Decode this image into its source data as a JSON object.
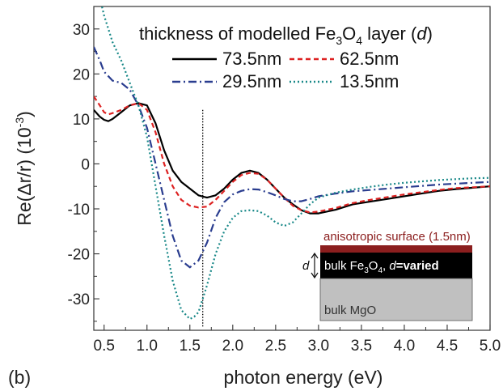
{
  "chart_data": {
    "type": "line",
    "panel_label": "(b)",
    "xlabel": "photon energy (eV)",
    "ylabel_main": "Re(Δr/r) (10",
    "ylabel_exp": "-3",
    "ylabel_close": ")",
    "xlim": [
      0.38,
      5.0
    ],
    "ylim": [
      -37,
      35
    ],
    "xticks": [
      0.5,
      1.0,
      1.5,
      2.0,
      2.5,
      3.0,
      3.5,
      4.0,
      4.5,
      5.0
    ],
    "xtick_labels": [
      "0.5",
      "1.0",
      "1.5",
      "2.0",
      "2.5",
      "3.0",
      "3.5",
      "4.0",
      "4.5",
      "5.0"
    ],
    "yticks": [
      30,
      20,
      10,
      0,
      -10,
      -20,
      -30
    ],
    "ytick_labels": [
      "30",
      "20",
      "10",
      "0",
      "-10",
      "-20",
      "-30"
    ],
    "legend_title": {
      "prefix": "thickness of modelled Fe",
      "sub": "3",
      "mid": "O",
      "sub2": "4",
      "suffix": " layer (",
      "italic": "d",
      "close": ")"
    },
    "legend_position": "top-right",
    "reference_line_x": 1.65,
    "series": [
      {
        "name": "73.5nm",
        "color": "#000000",
        "dash": "solid",
        "x": [
          0.38,
          0.45,
          0.5,
          0.55,
          0.6,
          0.7,
          0.8,
          0.9,
          1.0,
          1.1,
          1.2,
          1.3,
          1.4,
          1.5,
          1.6,
          1.7,
          1.8,
          1.9,
          2.0,
          2.1,
          2.2,
          2.3,
          2.4,
          2.5,
          2.6,
          2.7,
          2.8,
          2.9,
          3.0,
          3.2,
          3.4,
          3.6,
          3.8,
          4.0,
          4.2,
          4.4,
          4.6,
          4.8,
          5.0
        ],
        "y": [
          12,
          10.5,
          9.8,
          9.5,
          10,
          11.5,
          13,
          13.5,
          13,
          9,
          3,
          -1.5,
          -4,
          -5.5,
          -7,
          -7.5,
          -7,
          -5.5,
          -3.5,
          -2,
          -1.5,
          -2,
          -3.5,
          -5.5,
          -7.5,
          -9,
          -10.3,
          -11,
          -11,
          -10.2,
          -9,
          -8.4,
          -7.8,
          -7.2,
          -6.6,
          -6.0,
          -5.6,
          -5.3,
          -5.0
        ]
      },
      {
        "name": "62.5nm",
        "color": "#dd2222",
        "dash": "6,4",
        "x": [
          0.38,
          0.45,
          0.5,
          0.55,
          0.6,
          0.7,
          0.8,
          0.9,
          1.0,
          1.1,
          1.2,
          1.3,
          1.4,
          1.5,
          1.6,
          1.7,
          1.8,
          1.9,
          2.0,
          2.1,
          2.2,
          2.3,
          2.4,
          2.5,
          2.6,
          2.7,
          2.8,
          2.9,
          3.0,
          3.2,
          3.4,
          3.6,
          3.8,
          4.0,
          4.2,
          4.4,
          4.6,
          4.8,
          5.0
        ],
        "y": [
          15,
          13,
          11.5,
          11,
          11.3,
          12,
          13,
          13.5,
          12,
          7,
          0,
          -5,
          -8,
          -9.3,
          -9.7,
          -9.5,
          -8,
          -6,
          -4,
          -2.5,
          -2,
          -2.2,
          -3.5,
          -5.5,
          -7.5,
          -9.3,
          -10.3,
          -10.8,
          -10.6,
          -9.8,
          -8.7,
          -8.0,
          -7.4,
          -6.8,
          -6.3,
          -5.8,
          -5.4,
          -5.2,
          -5.0
        ]
      },
      {
        "name": "29.5nm",
        "color": "#2a3d8f",
        "dash": "10,4,2,4",
        "x": [
          0.38,
          0.45,
          0.5,
          0.6,
          0.7,
          0.8,
          0.9,
          1.0,
          1.1,
          1.2,
          1.3,
          1.4,
          1.5,
          1.6,
          1.7,
          1.8,
          1.9,
          2.0,
          2.1,
          2.2,
          2.3,
          2.4,
          2.5,
          2.6,
          2.7,
          2.8,
          2.9,
          3.0,
          3.2,
          3.4,
          3.6,
          3.8,
          4.0,
          4.2,
          4.4,
          4.6,
          4.8,
          5.0
        ],
        "y": [
          26,
          23,
          20.5,
          18.5,
          18,
          16.5,
          13,
          8,
          0,
          -8,
          -16,
          -21.5,
          -23,
          -21.5,
          -17.5,
          -12,
          -8.5,
          -6.8,
          -6,
          -5.6,
          -5.7,
          -6.3,
          -7,
          -7.8,
          -8.3,
          -8.3,
          -7.8,
          -7.2,
          -6.6,
          -6.1,
          -5.8,
          -5.5,
          -5.2,
          -4.9,
          -4.6,
          -4.4,
          -4.2,
          -4.0
        ]
      },
      {
        "name": "13.5nm",
        "color": "#188888",
        "dash": "2,3",
        "x": [
          0.38,
          0.45,
          0.5,
          0.6,
          0.7,
          0.8,
          0.9,
          1.0,
          1.1,
          1.2,
          1.3,
          1.4,
          1.5,
          1.55,
          1.6,
          1.7,
          1.8,
          1.9,
          2.0,
          2.1,
          2.2,
          2.3,
          2.4,
          2.5,
          2.6,
          2.7,
          2.8,
          2.9,
          3.0,
          3.2,
          3.4,
          3.6,
          3.8,
          4.0,
          4.2,
          4.4,
          4.6,
          4.8,
          5.0
        ],
        "y": [
          40,
          37,
          33,
          27,
          23,
          18,
          13,
          6,
          -5,
          -16,
          -26,
          -32.5,
          -34.5,
          -34,
          -33,
          -27,
          -20,
          -15,
          -12,
          -10.5,
          -10.3,
          -10.5,
          -11.5,
          -13,
          -13.8,
          -13,
          -11,
          -9,
          -7.5,
          -6.4,
          -5.7,
          -5.1,
          -4.6,
          -4.2,
          -3.9,
          -3.6,
          -3.4,
          -3.2,
          -3.1
        ]
      }
    ],
    "inset": {
      "surface_label": "anisotropic surface (1.5nm)",
      "layer_prefix": "bulk Fe",
      "layer_sub": "3",
      "layer_mid": "O",
      "layer_sub2": "4",
      "layer_comma": ", ",
      "layer_italic": "d",
      "layer_bold": "=varied",
      "d_label": "d",
      "substrate_label": "bulk MgO",
      "surface_color": "#8b1e1e",
      "layer_color": "#000000",
      "substrate_color": "#c0c0c0"
    }
  }
}
